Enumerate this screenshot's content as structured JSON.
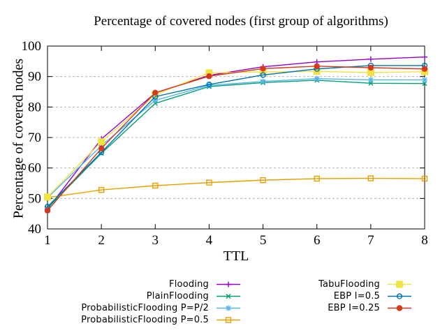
{
  "title": "Percentage of covered nodes (first group of algorithms)",
  "chart_data": {
    "type": "line",
    "title": "Percentage of covered nodes (first group of algorithms)",
    "xlabel": "TTL",
    "ylabel": "Percentage of covered nodes",
    "x": [
      1,
      2,
      3,
      4,
      5,
      6,
      7,
      8
    ],
    "xlim": [
      1,
      8
    ],
    "ylim": [
      40,
      100
    ],
    "ytick_step": 10,
    "yticks": [
      40,
      50,
      60,
      70,
      80,
      90,
      100
    ],
    "grid": "horizontal-dashed",
    "grid_color": "#b3b3b3",
    "legend_position": "bottom-two-columns",
    "series": [
      {
        "name": "Flooding",
        "color": "#9400d3",
        "marker": "plus",
        "values": [
          46.5,
          69.5,
          84.6,
          90.4,
          93.2,
          94.8,
          95.7,
          96.4
        ]
      },
      {
        "name": "PlainFlooding",
        "color": "#009e73",
        "marker": "cross",
        "values": [
          46.8,
          64.8,
          81.2,
          86.7,
          88.0,
          88.8,
          87.8,
          87.7
        ]
      },
      {
        "name": "ProbabilisticFlooding P=P/2",
        "color": "#56b4e9",
        "marker": "star",
        "values": [
          50.2,
          67.3,
          82.2,
          87.1,
          88.4,
          89.3,
          88.9,
          88.9
        ]
      },
      {
        "name": "ProbabilisticFlooding P=0.5",
        "color": "#e69f00",
        "marker": "square-open",
        "values": [
          50.3,
          52.8,
          54.2,
          55.2,
          56.0,
          56.5,
          56.6,
          56.5
        ]
      },
      {
        "name": "TabuFlooding",
        "color": "#f0e442",
        "marker": "square-filled",
        "values": [
          50.5,
          68.6,
          84.0,
          91.2,
          91.5,
          91.7,
          91.3,
          91.6
        ]
      },
      {
        "name": "EBP I=0.5",
        "color": "#0072b2",
        "marker": "circle-open",
        "values": [
          47.3,
          65.1,
          83.4,
          87.4,
          90.5,
          92.5,
          93.6,
          93.6
        ]
      },
      {
        "name": "EBP I=0.25",
        "color": "#d5391b",
        "marker": "circle-filled",
        "values": [
          46.0,
          66.4,
          84.7,
          90.1,
          92.6,
          93.4,
          92.9,
          92.5
        ]
      }
    ],
    "legend_columns": [
      [
        0,
        1,
        2,
        3
      ],
      [
        4,
        5,
        6
      ]
    ]
  }
}
